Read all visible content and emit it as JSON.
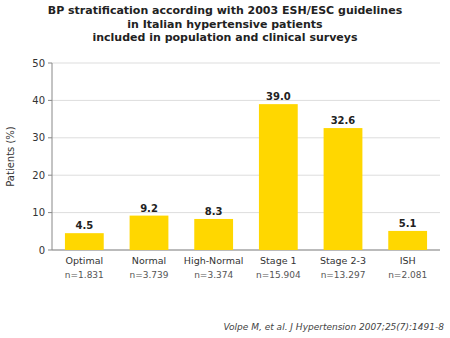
{
  "chart_data": {
    "type": "bar",
    "title": "BP stratification according with 2003 ESH/ESC guidelines\nin Italian hypertensive patients\nincluded in population and clinical surveys",
    "categories": [
      "Optimal",
      "Normal",
      "High-Normal",
      "Stage 1",
      "Stage 2-3",
      "ISH"
    ],
    "values": [
      4.5,
      9.2,
      8.3,
      39.0,
      32.6,
      5.1
    ],
    "value_labels": [
      "4.5",
      "9.2",
      "8.3",
      "39.0",
      "32.6",
      "5.1"
    ],
    "n_labels": [
      "n=1.831",
      "n=3.739",
      "n=3.374",
      "n=15.904",
      "n=13.297",
      "n=2.081"
    ],
    "color": "#FFD700",
    "ylabel": "Patients (%)",
    "ylim": [
      0,
      50
    ],
    "yticks": [
      0,
      10,
      20,
      30,
      40,
      50
    ],
    "grid": true,
    "data_labels": true,
    "footer": "Volpe M, et al. J Hypertension 2007;25(7):1491-8"
  }
}
